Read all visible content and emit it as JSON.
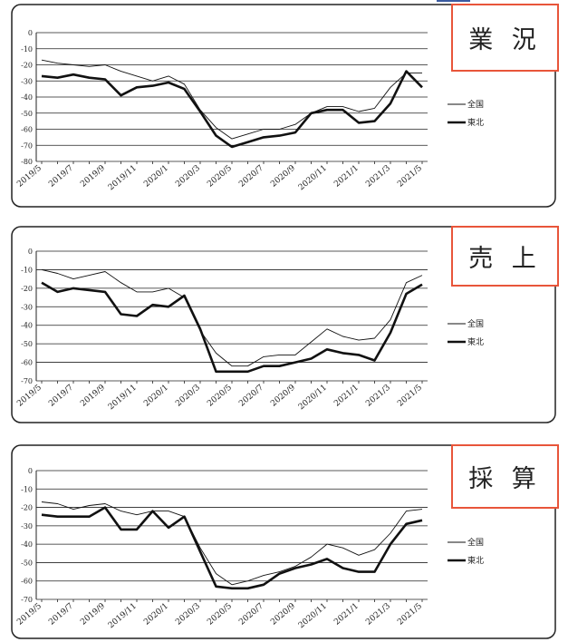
{
  "chart_data": [
    {
      "type": "line",
      "label": "業 況",
      "categories": [
        "2019/5",
        "2019/6",
        "2019/7",
        "2019/8",
        "2019/9",
        "2019/10",
        "2019/11",
        "2019/12",
        "2020/1",
        "2020/2",
        "2020/3",
        "2020/4",
        "2020/5",
        "2020/6",
        "2020/7",
        "2020/8",
        "2020/9",
        "2020/10",
        "2020/11",
        "2020/12",
        "2021/1",
        "2021/2",
        "2021/3",
        "2021/4",
        "2021/5"
      ],
      "x_tick_labels": [
        "2019/5",
        "2019/7",
        "2019/9",
        "2019/11",
        "2020/1",
        "2020/3",
        "2020/5",
        "2020/7",
        "2020/9",
        "2020/11",
        "2021/1",
        "2021/3",
        "2021/5"
      ],
      "ylim": [
        -80,
        0
      ],
      "yticks": [
        0,
        -10,
        -20,
        -30,
        -40,
        -50,
        -60,
        -70,
        -80
      ],
      "series": [
        {
          "name": "全国",
          "values": [
            -17,
            -19,
            -20,
            -21,
            -20,
            -24,
            -27,
            -30,
            -27,
            -32,
            -48,
            -59,
            -66,
            -63,
            -60,
            -60,
            -57,
            -50,
            -46,
            -46,
            -49,
            -47,
            -34,
            -25,
            -25
          ]
        },
        {
          "name": "東北",
          "values": [
            -27,
            -28,
            -26,
            -28,
            -29,
            -39,
            -34,
            -33,
            -31,
            -35,
            -49,
            -64,
            -71,
            -68,
            -65,
            -64,
            -62,
            -50,
            -48,
            -48,
            -56,
            -55,
            -44,
            -24,
            -34
          ]
        }
      ]
    },
    {
      "type": "line",
      "label": "売 上",
      "categories": [
        "2019/5",
        "2019/6",
        "2019/7",
        "2019/8",
        "2019/9",
        "2019/10",
        "2019/11",
        "2019/12",
        "2020/1",
        "2020/2",
        "2020/3",
        "2020/4",
        "2020/5",
        "2020/6",
        "2020/7",
        "2020/8",
        "2020/9",
        "2020/10",
        "2020/11",
        "2020/12",
        "2021/1",
        "2021/2",
        "2021/3",
        "2021/4",
        "2021/5"
      ],
      "x_tick_labels": [
        "2019/5",
        "2019/7",
        "2019/9",
        "2019/11",
        "2020/1",
        "2020/3",
        "2020/5",
        "2020/7",
        "2020/9",
        "2020/11",
        "2021/1",
        "2021/3",
        "2021/5"
      ],
      "ylim": [
        -70,
        0
      ],
      "yticks": [
        0,
        -10,
        -20,
        -30,
        -40,
        -50,
        -60,
        -70
      ],
      "series": [
        {
          "name": "全国",
          "values": [
            -10,
            -12,
            -15,
            -13,
            -11,
            -17,
            -22,
            -22,
            -20,
            -25,
            -43,
            -55,
            -62,
            -62,
            -57,
            -56,
            -56,
            -49,
            -42,
            -46,
            -48,
            -47,
            -37,
            -17,
            -13
          ]
        },
        {
          "name": "東北",
          "values": [
            -17,
            -22,
            -20,
            -21,
            -22,
            -34,
            -35,
            -29,
            -30,
            -24,
            -42,
            -65,
            -65,
            -65,
            -62,
            -62,
            -60,
            -58,
            -53,
            -55,
            -56,
            -59,
            -44,
            -23,
            -18
          ]
        }
      ]
    },
    {
      "type": "line",
      "label": "採 算",
      "categories": [
        "2019/5",
        "2019/6",
        "2019/7",
        "2019/8",
        "2019/9",
        "2019/10",
        "2019/11",
        "2019/12",
        "2020/1",
        "2020/2",
        "2020/3",
        "2020/4",
        "2020/5",
        "2020/6",
        "2020/7",
        "2020/8",
        "2020/9",
        "2020/10",
        "2020/11",
        "2020/12",
        "2021/1",
        "2021/2",
        "2021/3",
        "2021/4",
        "2021/5"
      ],
      "x_tick_labels": [
        "2019/5",
        "2019/7",
        "2019/9",
        "2019/11",
        "2020/1",
        "2020/3",
        "2020/5",
        "2020/7",
        "2020/9",
        "2020/11",
        "2021/1",
        "2021/3",
        "2021/5"
      ],
      "ylim": [
        -70,
        0
      ],
      "yticks": [
        0,
        -10,
        -20,
        -30,
        -40,
        -50,
        -60,
        -70
      ],
      "series": [
        {
          "name": "全国",
          "values": [
            -17,
            -18,
            -21,
            -19,
            -18,
            -22,
            -24,
            -22,
            -22,
            -25,
            -42,
            -56,
            -62,
            -60,
            -57,
            -55,
            -52,
            -47,
            -40,
            -42,
            -46,
            -43,
            -34,
            -22,
            -21
          ]
        },
        {
          "name": "東北",
          "values": [
            -24,
            -25,
            -25,
            -25,
            -20,
            -32,
            -32,
            -22,
            -31,
            -25,
            -44,
            -63,
            -64,
            -64,
            -62,
            -56,
            -53,
            -51,
            -48,
            -53,
            -55,
            -55,
            -40,
            -29,
            -27
          ]
        }
      ]
    }
  ],
  "legend": {
    "national": "全国",
    "tohoku": "東北"
  },
  "colors": {
    "accent_border": "#e8553a",
    "line": "#111111",
    "frame": "#222222"
  }
}
